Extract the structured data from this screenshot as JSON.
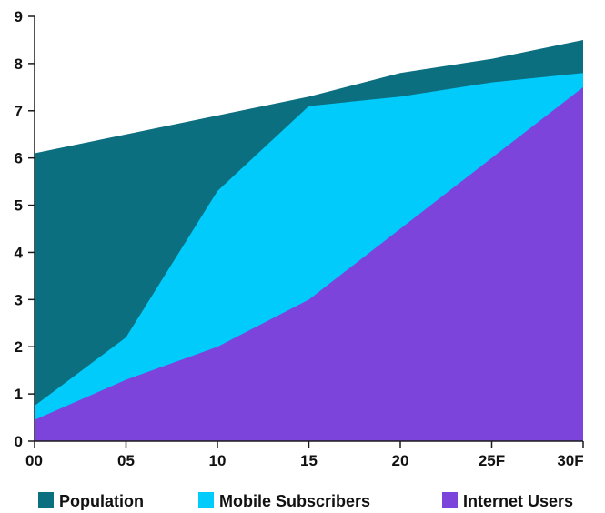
{
  "chart_data": {
    "type": "area",
    "categories": [
      "00",
      "05",
      "10",
      "15",
      "20",
      "25F",
      "30F"
    ],
    "ylim": [
      0,
      9
    ],
    "yticks": [
      "0",
      "1",
      "2",
      "3",
      "4",
      "5",
      "6",
      "7",
      "8",
      "9"
    ],
    "grid": false,
    "legend_position": "bottom",
    "series": [
      {
        "name": "Population",
        "color": "#0b6f80",
        "values": [
          6.1,
          6.5,
          6.9,
          7.3,
          7.8,
          8.1,
          8.5
        ]
      },
      {
        "name": "Mobile Subscribers",
        "color": "#00cbfb",
        "values": [
          0.75,
          2.2,
          5.3,
          7.1,
          7.3,
          7.6,
          7.8
        ]
      },
      {
        "name": "Internet Users",
        "color": "#7d44dc",
        "values": [
          0.45,
          1.3,
          2.0,
          3.0,
          4.5,
          6.0,
          7.5
        ]
      }
    ]
  }
}
